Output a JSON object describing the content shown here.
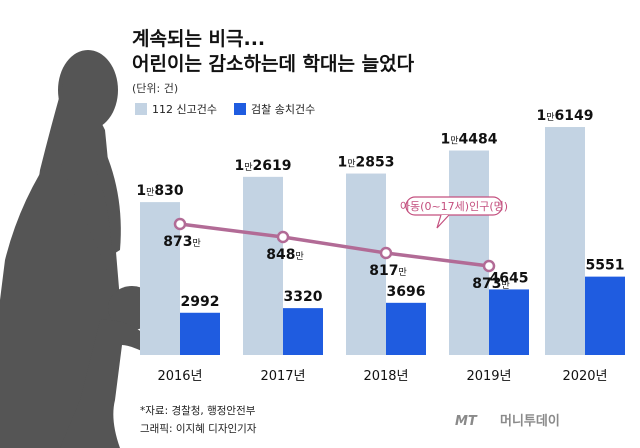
{
  "title_line1": "계속되는 비극...",
  "title_line2": "어린이는 감소하는데 학대는 늘었다",
  "unit": "(단위: 건)",
  "source": "*자료: 경찰청, 행정안전부",
  "credit": "그래픽: 이지혜 디자인기자",
  "logo": "머니투데이",
  "logo_prefix": "MT",
  "colors": {
    "bar_light": "#c3d3e3",
    "bar_dark": "#1f5ce0",
    "line": "#b26b96",
    "callout_border": "#c4507f",
    "callout_text": "#c4507f",
    "silhouette": "#555555"
  },
  "chart_data": {
    "type": "bar",
    "categories": [
      "2016년",
      "2017년",
      "2018년",
      "2019년",
      "2020년"
    ],
    "series": [
      {
        "name": "112 신고건수",
        "values": [
          10830,
          12619,
          12853,
          14484,
          16149
        ],
        "labels": [
          {
            "man": "1",
            "suffix": "만",
            "rest": "830"
          },
          {
            "man": "1",
            "suffix": "만",
            "rest": "2619"
          },
          {
            "man": "1",
            "suffix": "만",
            "rest": "2853"
          },
          {
            "man": "1",
            "suffix": "만",
            "rest": "4484"
          },
          {
            "man": "1",
            "suffix": "만",
            "rest": "6149"
          }
        ]
      },
      {
        "name": "검찰 송치건수",
        "values": [
          2992,
          3320,
          3696,
          4645,
          5551
        ],
        "labels": [
          "2992",
          "3320",
          "3696",
          "4645",
          "5551"
        ]
      }
    ],
    "line_series": {
      "name": "아동(0~17세)인구(명)",
      "categories": [
        "2016년",
        "2017년",
        "2018년",
        "2019년"
      ],
      "values": [
        873,
        848,
        817,
        873
      ],
      "labels": [
        "873",
        "848",
        "817",
        "873"
      ],
      "suffix": "만"
    },
    "ylim": [
      0,
      17000
    ]
  }
}
